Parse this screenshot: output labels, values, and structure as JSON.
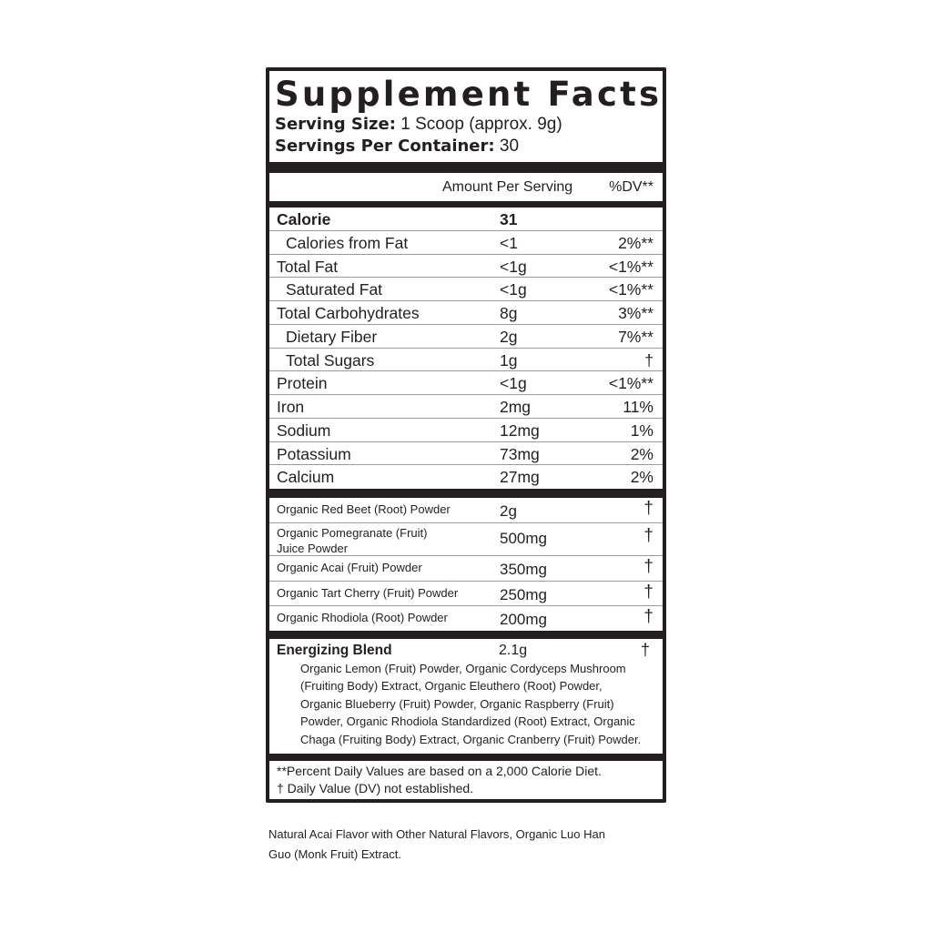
{
  "header": {
    "title": "Supplement Facts",
    "serving_size_label": "Serving Size:",
    "serving_size": "1 Scoop (approx. 9g)",
    "servings_label": "Servings Per Container:",
    "servings": "30"
  },
  "columns": {
    "amount": "Amount Per Serving",
    "dv": "%DV**"
  },
  "nutrients": [
    {
      "name": "Calorie",
      "amount": "31",
      "dv": "",
      "bold": true
    },
    {
      "name": "Calories from Fat",
      "amount": "<1",
      "dv": "2%**",
      "indent": true
    },
    {
      "name": "Total Fat",
      "amount": "<1g",
      "dv": "<1%**"
    },
    {
      "name": "Saturated Fat",
      "amount": "<1g",
      "dv": "<1%**",
      "indent": true
    },
    {
      "name": "Total Carbohydrates",
      "amount": "8g",
      "dv": "3%**"
    },
    {
      "name": "Dietary Fiber",
      "amount": "2g",
      "dv": "7%**",
      "indent": true
    },
    {
      "name": "Total Sugars",
      "amount": "1g",
      "dv": "†",
      "indent": true
    },
    {
      "name": "Protein",
      "amount": "<1g",
      "dv": "<1%**"
    },
    {
      "name": "Iron",
      "amount": "2mg",
      "dv": "11%"
    },
    {
      "name": "Sodium",
      "amount": "12mg",
      "dv": "1%"
    },
    {
      "name": "Potassium",
      "amount": "73mg",
      "dv": "2%"
    },
    {
      "name": "Calcium",
      "amount": "27mg",
      "dv": "2%"
    }
  ],
  "ingredients": [
    {
      "name": "Organic Red Beet (Root) Powder",
      "amount": "2g",
      "dv": "†"
    },
    {
      "name": "Organic Pomegranate (Fruit) Juice Powder",
      "amount": "500mg",
      "dv": "†"
    },
    {
      "name": "Organic Acai (Fruit) Powder",
      "amount": "350mg",
      "dv": "†"
    },
    {
      "name": "Organic Tart Cherry (Fruit) Powder",
      "amount": "250mg",
      "dv": "†"
    },
    {
      "name": "Organic Rhodiola (Root) Powder",
      "amount": "200mg",
      "dv": "†"
    }
  ],
  "blend": {
    "name": "Energizing Blend",
    "amount": "2.1g",
    "dv": "†",
    "contents": "Organic Lemon (Fruit) Powder, Organic Cordyceps Mushroom (Fruiting Body) Extract, Organic Eleuthero (Root) Powder, Organic Blueberry (Fruit) Powder, Organic Raspberry (Fruit) Powder, Organic Rhodiola Standardized (Root) Extract, Organic Chaga (Fruiting Body) Extract, Organic Cranberry (Fruit) Powder."
  },
  "footnotes": [
    "**Percent Daily Values are based on a 2,000 Calorie Diet.",
    "† Daily Value (DV) not established."
  ],
  "other_ingredients": "Natural Acai Flavor with Other Natural Flavors, Organic Luo Han Guo (Monk Fruit) Extract."
}
